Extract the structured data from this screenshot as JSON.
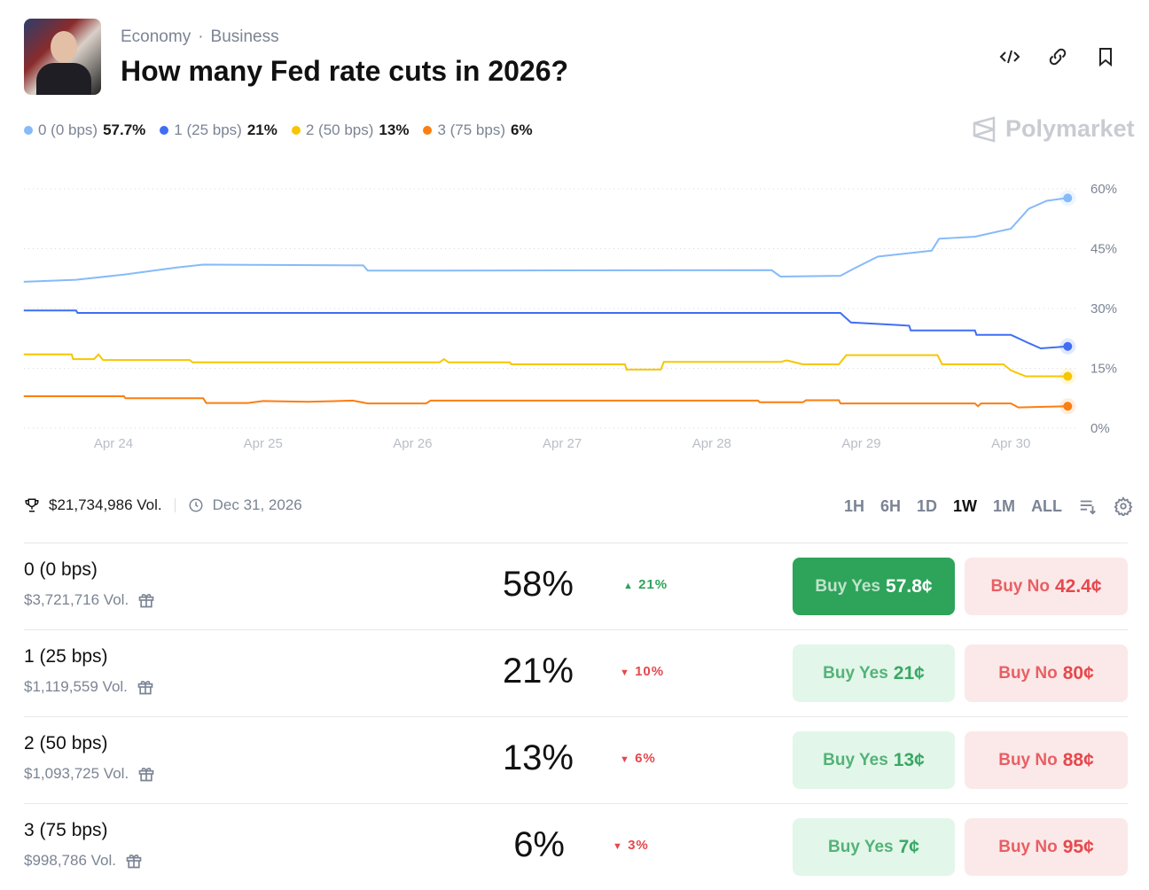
{
  "header": {
    "categories": [
      "Economy",
      "Business"
    ],
    "title": "How many Fed rate cuts in 2026?",
    "icons": [
      "code-icon",
      "link-icon",
      "bookmark-icon"
    ],
    "brand": "Polymarket"
  },
  "legend": [
    {
      "label": "0 (0 bps)",
      "value": "57.7%",
      "color": "#86baf9"
    },
    {
      "label": "1 (25 bps)",
      "value": "21%",
      "color": "#3f6ef5"
    },
    {
      "label": "2 (50 bps)",
      "value": "13%",
      "color": "#f7c600"
    },
    {
      "label": "3 (75 bps)",
      "value": "6%",
      "color": "#fb7e12"
    }
  ],
  "chart_data": {
    "type": "line",
    "x_unit": "days after Apr 23",
    "x_ticks": [
      "Apr 24",
      "Apr 25",
      "Apr 26",
      "Apr 27",
      "Apr 28",
      "Apr 29",
      "Apr 30"
    ],
    "y_ticks": [
      "0%",
      "15%",
      "30%",
      "45%",
      "60%"
    ],
    "ylim": [
      0,
      60
    ],
    "series": [
      {
        "name": "0 (0 bps)",
        "color": "#86baf9",
        "points": [
          [
            0.4,
            36.7
          ],
          [
            0.75,
            37.2
          ],
          [
            1.07,
            38.5
          ],
          [
            1.43,
            40.3
          ],
          [
            1.6,
            41
          ],
          [
            2.67,
            40.8
          ],
          [
            2.7,
            39.5
          ],
          [
            5.4,
            39.6
          ],
          [
            5.46,
            38
          ],
          [
            5.86,
            38.2
          ],
          [
            5.95,
            40
          ],
          [
            6.11,
            43
          ],
          [
            6.47,
            44.5
          ],
          [
            6.52,
            47.5
          ],
          [
            6.76,
            48
          ],
          [
            7.0,
            50
          ],
          [
            7.12,
            55
          ],
          [
            7.24,
            57
          ],
          [
            7.38,
            57.7
          ]
        ]
      },
      {
        "name": "1 (25 bps)",
        "color": "#3f6ef5",
        "points": [
          [
            0.4,
            29.5
          ],
          [
            0.75,
            29.5
          ],
          [
            0.76,
            28.9
          ],
          [
            5.86,
            28.9
          ],
          [
            5.93,
            26.5
          ],
          [
            6.32,
            25.7
          ],
          [
            6.33,
            24.5
          ],
          [
            6.76,
            24.5
          ],
          [
            6.77,
            23.4
          ],
          [
            7.0,
            23.4
          ],
          [
            7.12,
            21.3
          ],
          [
            7.2,
            20
          ],
          [
            7.38,
            20.5
          ]
        ]
      },
      {
        "name": "2 (50 bps)",
        "color": "#f7c600",
        "points": [
          [
            0.4,
            18.5
          ],
          [
            0.72,
            18.5
          ],
          [
            0.73,
            17.3
          ],
          [
            0.87,
            17.3
          ],
          [
            0.9,
            18.5
          ],
          [
            0.93,
            17.1
          ],
          [
            1.51,
            17.1
          ],
          [
            1.53,
            16.5
          ],
          [
            3.18,
            16.5
          ],
          [
            3.21,
            17.3
          ],
          [
            3.24,
            16.5
          ],
          [
            3.65,
            16.5
          ],
          [
            3.66,
            16
          ],
          [
            4.42,
            16
          ],
          [
            4.43,
            14.7
          ],
          [
            4.66,
            14.7
          ],
          [
            4.68,
            16.6
          ],
          [
            5.46,
            16.6
          ],
          [
            5.5,
            17
          ],
          [
            5.61,
            16
          ],
          [
            5.85,
            16
          ],
          [
            5.9,
            18.3
          ],
          [
            6.51,
            18.3
          ],
          [
            6.54,
            16
          ],
          [
            6.95,
            16
          ],
          [
            7.0,
            14.5
          ],
          [
            7.1,
            13
          ],
          [
            7.38,
            13
          ]
        ]
      },
      {
        "name": "3 (75 bps)",
        "color": "#fb7e12",
        "points": [
          [
            0.4,
            8
          ],
          [
            1.07,
            8
          ],
          [
            1.08,
            7.5
          ],
          [
            1.6,
            7.5
          ],
          [
            1.62,
            6.3
          ],
          [
            1.9,
            6.3
          ],
          [
            2.0,
            6.8
          ],
          [
            2.3,
            6.6
          ],
          [
            2.6,
            6.9
          ],
          [
            2.7,
            6.2
          ],
          [
            3.09,
            6.2
          ],
          [
            3.12,
            6.9
          ],
          [
            5.31,
            6.9
          ],
          [
            5.32,
            6.5
          ],
          [
            5.61,
            6.5
          ],
          [
            5.63,
            7
          ],
          [
            5.85,
            7
          ],
          [
            5.86,
            6.2
          ],
          [
            6.76,
            6.2
          ],
          [
            6.78,
            5.5
          ],
          [
            6.8,
            6.2
          ],
          [
            7.0,
            6.2
          ],
          [
            7.05,
            5.2
          ],
          [
            7.38,
            5.5
          ]
        ]
      }
    ]
  },
  "meta": {
    "volume": "$21,734,986 Vol.",
    "end_date": "Dec 31, 2026"
  },
  "ranges": [
    "1H",
    "6H",
    "1D",
    "1W",
    "1M",
    "ALL"
  ],
  "outcomes": [
    {
      "name": "0 (0 bps)",
      "vol": "$3,721,716 Vol.",
      "pct": "58%",
      "change": "21%",
      "dir": "up",
      "yes": "57.8¢",
      "no": "42.4¢"
    },
    {
      "name": "1 (25 bps)",
      "vol": "$1,119,559 Vol.",
      "pct": "21%",
      "change": "10%",
      "dir": "down",
      "yes": "21¢",
      "no": "80¢"
    },
    {
      "name": "2 (50 bps)",
      "vol": "$1,093,725 Vol.",
      "pct": "13%",
      "change": "6%",
      "dir": "down",
      "yes": "13¢",
      "no": "88¢"
    },
    {
      "name": "3 (75 bps)",
      "vol": "$998,786 Vol.",
      "pct": "6%",
      "change": "3%",
      "dir": "down",
      "yes": "7¢",
      "no": "95¢"
    }
  ],
  "labels": {
    "buy_yes": "Buy Yes",
    "buy_no": "Buy No"
  }
}
